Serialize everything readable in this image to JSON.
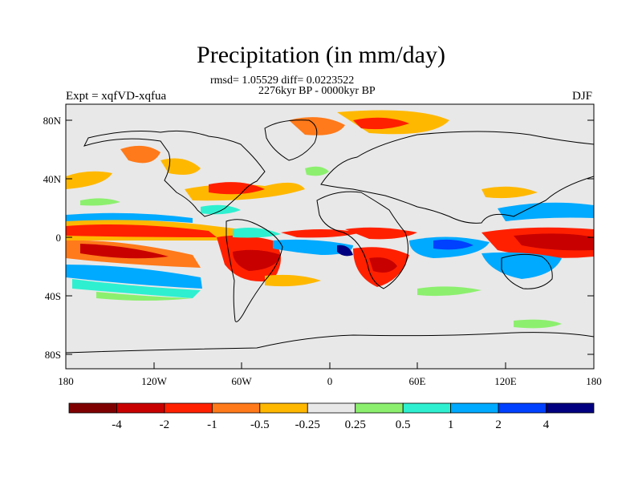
{
  "title": "Precipitation (in mm/day)",
  "stats_line": "rmsd= 1.05529 diff= 0.0223522",
  "period_line": "2276kyr BP - 0000kyr BP",
  "experiment_label": "Expt = xqfVD-xqfua",
  "season_label": "DJF",
  "lat_ticks": [
    "80N",
    "40N",
    "0",
    "40S",
    "80S"
  ],
  "lon_ticks": [
    "180",
    "120W",
    "60W",
    "0",
    "60E",
    "120E",
    "180"
  ],
  "colorbar": {
    "colors": [
      "#7f0000",
      "#c80000",
      "#ff2000",
      "#ff7a1a",
      "#ffb800",
      "#e8e8e8",
      "#8cf06e",
      "#2ef0d0",
      "#00aaff",
      "#0040ff",
      "#000080"
    ],
    "labels": [
      "-4",
      "-2",
      "-1",
      "-0.5",
      "-0.25",
      "0.25",
      "0.5",
      "1",
      "2",
      "4"
    ]
  },
  "colors": {
    "background": "#e8e8e8",
    "coastline": "#000000"
  }
}
